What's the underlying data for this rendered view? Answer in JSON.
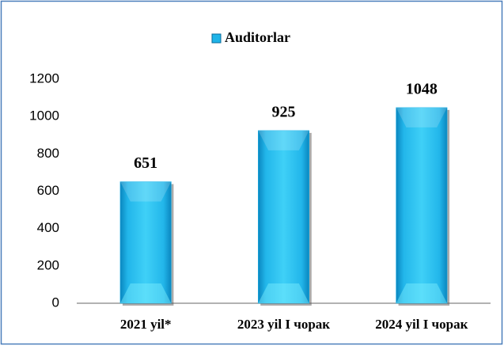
{
  "chart_data": {
    "type": "bar",
    "categories": [
      "2021 yil*",
      "2023 yil I чорак",
      "2024 yil I чорак"
    ],
    "series": [
      {
        "name": "Auditorlar",
        "color": "#1fb4e8",
        "values": [
          651,
          925,
          1048
        ]
      }
    ],
    "ylim": [
      0,
      1200
    ],
    "yticks": [
      0,
      200,
      400,
      600,
      800,
      1000,
      1200
    ],
    "grid": false,
    "legend": "top"
  }
}
